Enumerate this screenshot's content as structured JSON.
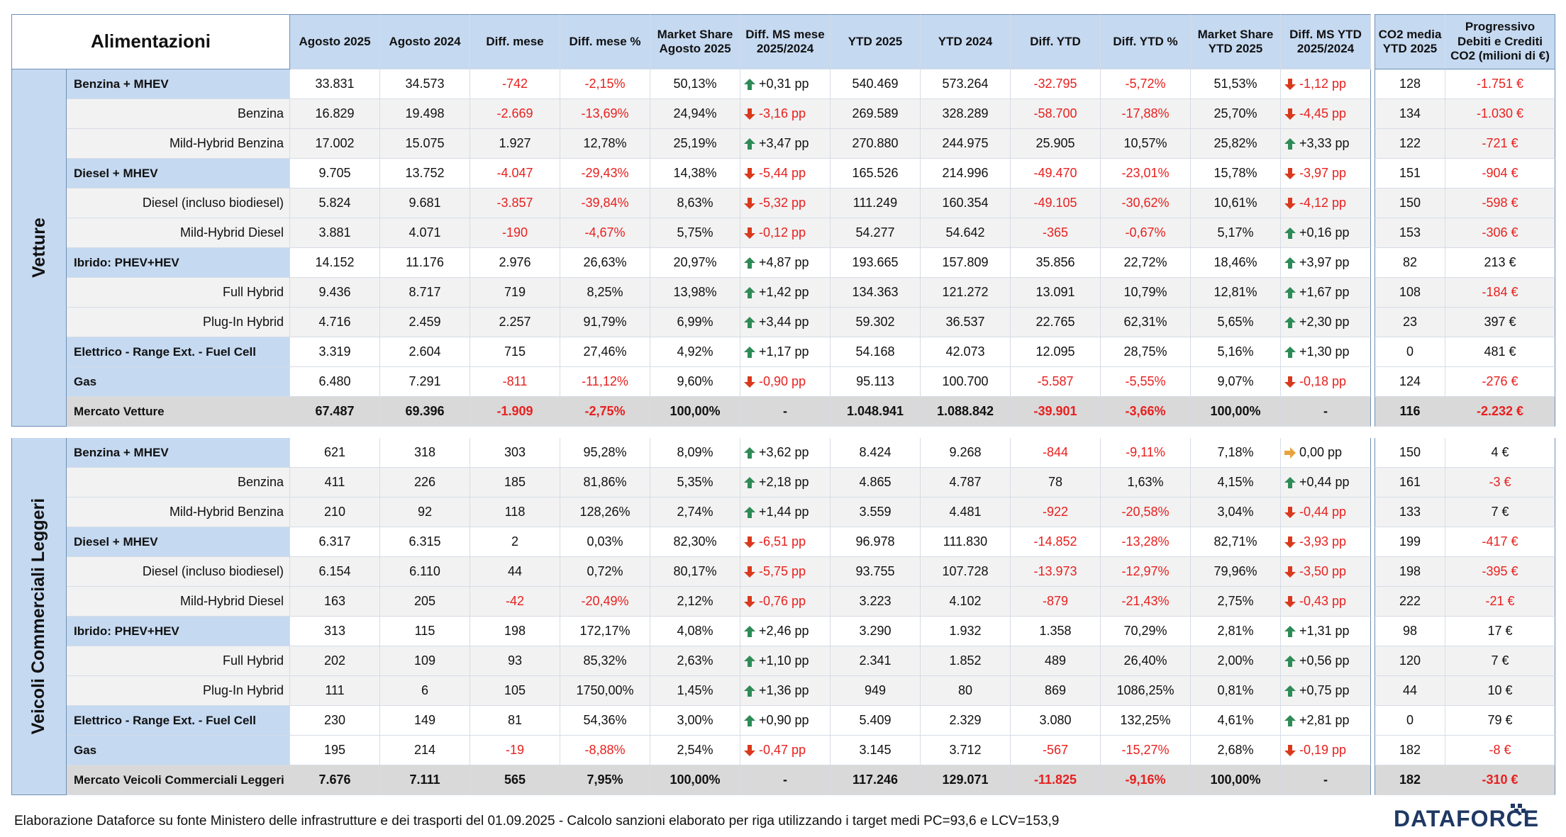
{
  "header": {
    "title": "Alimentazioni",
    "cols": [
      "Agosto 2025",
      "Agosto 2024",
      "Diff. mese",
      "Diff. mese %",
      "Market Share Agosto 2025",
      "Diff. MS mese 2025/2024",
      "YTD 2025",
      "YTD 2024",
      "Diff. YTD",
      "Diff. YTD %",
      "Market Share YTD 2025",
      "Diff. MS YTD 2025/2024"
    ],
    "co2": "CO2 media YTD 2025",
    "prog": "Progressivo Debiti e Crediti CO2 (milioni di €)"
  },
  "sections": [
    {
      "name": "Vetture",
      "rows": [
        {
          "label": "Benzina + MHEV",
          "type": "group",
          "v": [
            "33.831",
            "34.573",
            "-742",
            "-2,15%",
            "50,13%"
          ],
          "ms": "+0,31 pp",
          "msdir": "up",
          "y": [
            "540.469",
            "573.264",
            "-32.795",
            "-5,72%",
            "51,53%"
          ],
          "ys": "-1,12 pp",
          "ysdir": "down",
          "co2": "128",
          "prog": "-1.751 €"
        },
        {
          "label": "Benzina",
          "type": "sub",
          "v": [
            "16.829",
            "19.498",
            "-2.669",
            "-13,69%",
            "24,94%"
          ],
          "ms": "-3,16 pp",
          "msdir": "down",
          "y": [
            "269.589",
            "328.289",
            "-58.700",
            "-17,88%",
            "25,70%"
          ],
          "ys": "-4,45 pp",
          "ysdir": "down",
          "co2": "134",
          "prog": "-1.030 €"
        },
        {
          "label": "Mild-Hybrid Benzina",
          "type": "sub",
          "v": [
            "17.002",
            "15.075",
            "1.927",
            "12,78%",
            "25,19%"
          ],
          "ms": "+3,47 pp",
          "msdir": "up",
          "y": [
            "270.880",
            "244.975",
            "25.905",
            "10,57%",
            "25,82%"
          ],
          "ys": "+3,33 pp",
          "ysdir": "up",
          "co2": "122",
          "prog": "-721 €"
        },
        {
          "label": "Diesel + MHEV",
          "type": "group",
          "v": [
            "9.705",
            "13.752",
            "-4.047",
            "-29,43%",
            "14,38%"
          ],
          "ms": "-5,44 pp",
          "msdir": "down",
          "y": [
            "165.526",
            "214.996",
            "-49.470",
            "-23,01%",
            "15,78%"
          ],
          "ys": "-3,97 pp",
          "ysdir": "down",
          "co2": "151",
          "prog": "-904 €"
        },
        {
          "label": "Diesel (incluso biodiesel)",
          "type": "sub",
          "v": [
            "5.824",
            "9.681",
            "-3.857",
            "-39,84%",
            "8,63%"
          ],
          "ms": "-5,32 pp",
          "msdir": "down",
          "y": [
            "111.249",
            "160.354",
            "-49.105",
            "-30,62%",
            "10,61%"
          ],
          "ys": "-4,12 pp",
          "ysdir": "down",
          "co2": "150",
          "prog": "-598 €"
        },
        {
          "label": "Mild-Hybrid Diesel",
          "type": "sub",
          "v": [
            "3.881",
            "4.071",
            "-190",
            "-4,67%",
            "5,75%"
          ],
          "ms": "-0,12 pp",
          "msdir": "down",
          "y": [
            "54.277",
            "54.642",
            "-365",
            "-0,67%",
            "5,17%"
          ],
          "ys": "+0,16 pp",
          "ysdir": "up",
          "co2": "153",
          "prog": "-306 €"
        },
        {
          "label": "Ibrido: PHEV+HEV",
          "type": "group",
          "v": [
            "14.152",
            "11.176",
            "2.976",
            "26,63%",
            "20,97%"
          ],
          "ms": "+4,87 pp",
          "msdir": "up",
          "y": [
            "193.665",
            "157.809",
            "35.856",
            "22,72%",
            "18,46%"
          ],
          "ys": "+3,97 pp",
          "ysdir": "up",
          "co2": "82",
          "prog": "213 €"
        },
        {
          "label": "Full Hybrid",
          "type": "sub",
          "v": [
            "9.436",
            "8.717",
            "719",
            "8,25%",
            "13,98%"
          ],
          "ms": "+1,42 pp",
          "msdir": "up",
          "y": [
            "134.363",
            "121.272",
            "13.091",
            "10,79%",
            "12,81%"
          ],
          "ys": "+1,67 pp",
          "ysdir": "up",
          "co2": "108",
          "prog": "-184 €"
        },
        {
          "label": "Plug-In Hybrid",
          "type": "sub",
          "v": [
            "4.716",
            "2.459",
            "2.257",
            "91,79%",
            "6,99%"
          ],
          "ms": "+3,44 pp",
          "msdir": "up",
          "y": [
            "59.302",
            "36.537",
            "22.765",
            "62,31%",
            "5,65%"
          ],
          "ys": "+2,30 pp",
          "ysdir": "up",
          "co2": "23",
          "prog": "397 €"
        },
        {
          "label": "Elettrico - Range Ext. - Fuel Cell",
          "type": "group",
          "v": [
            "3.319",
            "2.604",
            "715",
            "27,46%",
            "4,92%"
          ],
          "ms": "+1,17 pp",
          "msdir": "up",
          "y": [
            "54.168",
            "42.073",
            "12.095",
            "28,75%",
            "5,16%"
          ],
          "ys": "+1,30 pp",
          "ysdir": "up",
          "co2": "0",
          "prog": "481 €"
        },
        {
          "label": "Gas",
          "type": "group",
          "v": [
            "6.480",
            "7.291",
            "-811",
            "-11,12%",
            "9,60%"
          ],
          "ms": "-0,90 pp",
          "msdir": "down",
          "y": [
            "95.113",
            "100.700",
            "-5.587",
            "-5,55%",
            "9,07%"
          ],
          "ys": "-0,18 pp",
          "ysdir": "down",
          "co2": "124",
          "prog": "-276 €"
        },
        {
          "label": "Mercato Vetture",
          "type": "total",
          "v": [
            "67.487",
            "69.396",
            "-1.909",
            "-2,75%",
            "100,00%"
          ],
          "ms": "-",
          "msdir": "none",
          "y": [
            "1.048.941",
            "1.088.842",
            "-39.901",
            "-3,66%",
            "100,00%"
          ],
          "ys": "-",
          "ysdir": "none",
          "co2": "116",
          "prog": "-2.232 €"
        }
      ]
    },
    {
      "name": "Veicoli Commerciali Leggeri",
      "rows": [
        {
          "label": "Benzina + MHEV",
          "type": "group",
          "v": [
            "621",
            "318",
            "303",
            "95,28%",
            "8,09%"
          ],
          "ms": "+3,62 pp",
          "msdir": "up",
          "y": [
            "8.424",
            "9.268",
            "-844",
            "-9,11%",
            "7,18%"
          ],
          "ys": "0,00 pp",
          "ysdir": "flat",
          "co2": "150",
          "prog": "4 €"
        },
        {
          "label": "Benzina",
          "type": "sub",
          "v": [
            "411",
            "226",
            "185",
            "81,86%",
            "5,35%"
          ],
          "ms": "+2,18 pp",
          "msdir": "up",
          "y": [
            "4.865",
            "4.787",
            "78",
            "1,63%",
            "4,15%"
          ],
          "ys": "+0,44 pp",
          "ysdir": "up",
          "co2": "161",
          "prog": "-3 €"
        },
        {
          "label": "Mild-Hybrid Benzina",
          "type": "sub",
          "v": [
            "210",
            "92",
            "118",
            "128,26%",
            "2,74%"
          ],
          "ms": "+1,44 pp",
          "msdir": "up",
          "y": [
            "3.559",
            "4.481",
            "-922",
            "-20,58%",
            "3,04%"
          ],
          "ys": "-0,44 pp",
          "ysdir": "down",
          "co2": "133",
          "prog": "7 €"
        },
        {
          "label": "Diesel + MHEV",
          "type": "group",
          "v": [
            "6.317",
            "6.315",
            "2",
            "0,03%",
            "82,30%"
          ],
          "ms": "-6,51 pp",
          "msdir": "down",
          "y": [
            "96.978",
            "111.830",
            "-14.852",
            "-13,28%",
            "82,71%"
          ],
          "ys": "-3,93 pp",
          "ysdir": "down",
          "co2": "199",
          "prog": "-417 €"
        },
        {
          "label": "Diesel (incluso biodiesel)",
          "type": "sub",
          "v": [
            "6.154",
            "6.110",
            "44",
            "0,72%",
            "80,17%"
          ],
          "ms": "-5,75 pp",
          "msdir": "down",
          "y": [
            "93.755",
            "107.728",
            "-13.973",
            "-12,97%",
            "79,96%"
          ],
          "ys": "-3,50 pp",
          "ysdir": "down",
          "co2": "198",
          "prog": "-395 €"
        },
        {
          "label": "Mild-Hybrid Diesel",
          "type": "sub",
          "v": [
            "163",
            "205",
            "-42",
            "-20,49%",
            "2,12%"
          ],
          "ms": "-0,76 pp",
          "msdir": "down",
          "y": [
            "3.223",
            "4.102",
            "-879",
            "-21,43%",
            "2,75%"
          ],
          "ys": "-0,43 pp",
          "ysdir": "down",
          "co2": "222",
          "prog": "-21 €"
        },
        {
          "label": "Ibrido: PHEV+HEV",
          "type": "group",
          "v": [
            "313",
            "115",
            "198",
            "172,17%",
            "4,08%"
          ],
          "ms": "+2,46 pp",
          "msdir": "up",
          "y": [
            "3.290",
            "1.932",
            "1.358",
            "70,29%",
            "2,81%"
          ],
          "ys": "+1,31 pp",
          "ysdir": "up",
          "co2": "98",
          "prog": "17 €"
        },
        {
          "label": "Full Hybrid",
          "type": "sub",
          "v": [
            "202",
            "109",
            "93",
            "85,32%",
            "2,63%"
          ],
          "ms": "+1,10 pp",
          "msdir": "up",
          "y": [
            "2.341",
            "1.852",
            "489",
            "26,40%",
            "2,00%"
          ],
          "ys": "+0,56 pp",
          "ysdir": "up",
          "co2": "120",
          "prog": "7 €"
        },
        {
          "label": "Plug-In Hybrid",
          "type": "sub",
          "v": [
            "111",
            "6",
            "105",
            "1750,00%",
            "1,45%"
          ],
          "ms": "+1,36 pp",
          "msdir": "up",
          "y": [
            "949",
            "80",
            "869",
            "1086,25%",
            "0,81%"
          ],
          "ys": "+0,75 pp",
          "ysdir": "up",
          "co2": "44",
          "prog": "10 €"
        },
        {
          "label": "Elettrico - Range Ext. - Fuel Cell",
          "type": "group",
          "v": [
            "230",
            "149",
            "81",
            "54,36%",
            "3,00%"
          ],
          "ms": "+0,90 pp",
          "msdir": "up",
          "y": [
            "5.409",
            "2.329",
            "3.080",
            "132,25%",
            "4,61%"
          ],
          "ys": "+2,81 pp",
          "ysdir": "up",
          "co2": "0",
          "prog": "79 €"
        },
        {
          "label": "Gas",
          "type": "group",
          "v": [
            "195",
            "214",
            "-19",
            "-8,88%",
            "2,54%"
          ],
          "ms": "-0,47 pp",
          "msdir": "down",
          "y": [
            "3.145",
            "3.712",
            "-567",
            "-15,27%",
            "2,68%"
          ],
          "ys": "-0,19 pp",
          "ysdir": "down",
          "co2": "182",
          "prog": "-8 €"
        },
        {
          "label": "Mercato Veicoli Commerciali Leggeri",
          "type": "total",
          "v": [
            "7.676",
            "7.111",
            "565",
            "7,95%",
            "100,00%"
          ],
          "ms": "-",
          "msdir": "none",
          "y": [
            "117.246",
            "129.071",
            "-11.825",
            "-9,16%",
            "100,00%"
          ],
          "ys": "-",
          "ysdir": "none",
          "co2": "182",
          "prog": "-310 €"
        }
      ]
    }
  ],
  "footer": "Elaborazione Dataforce su fonte Ministero delle infrastrutture e dei trasporti del 01.09.2025 - Calcolo sanzioni elaborato per riga utilizzando i target medi PC=93,6 e LCV=153,9",
  "logo": "DATAFORCE",
  "colors": {
    "up": "#2e8b57",
    "down": "#d9391c",
    "flat": "#e8a33d",
    "negative": "#e8201e",
    "header": "#c5d9f1"
  }
}
